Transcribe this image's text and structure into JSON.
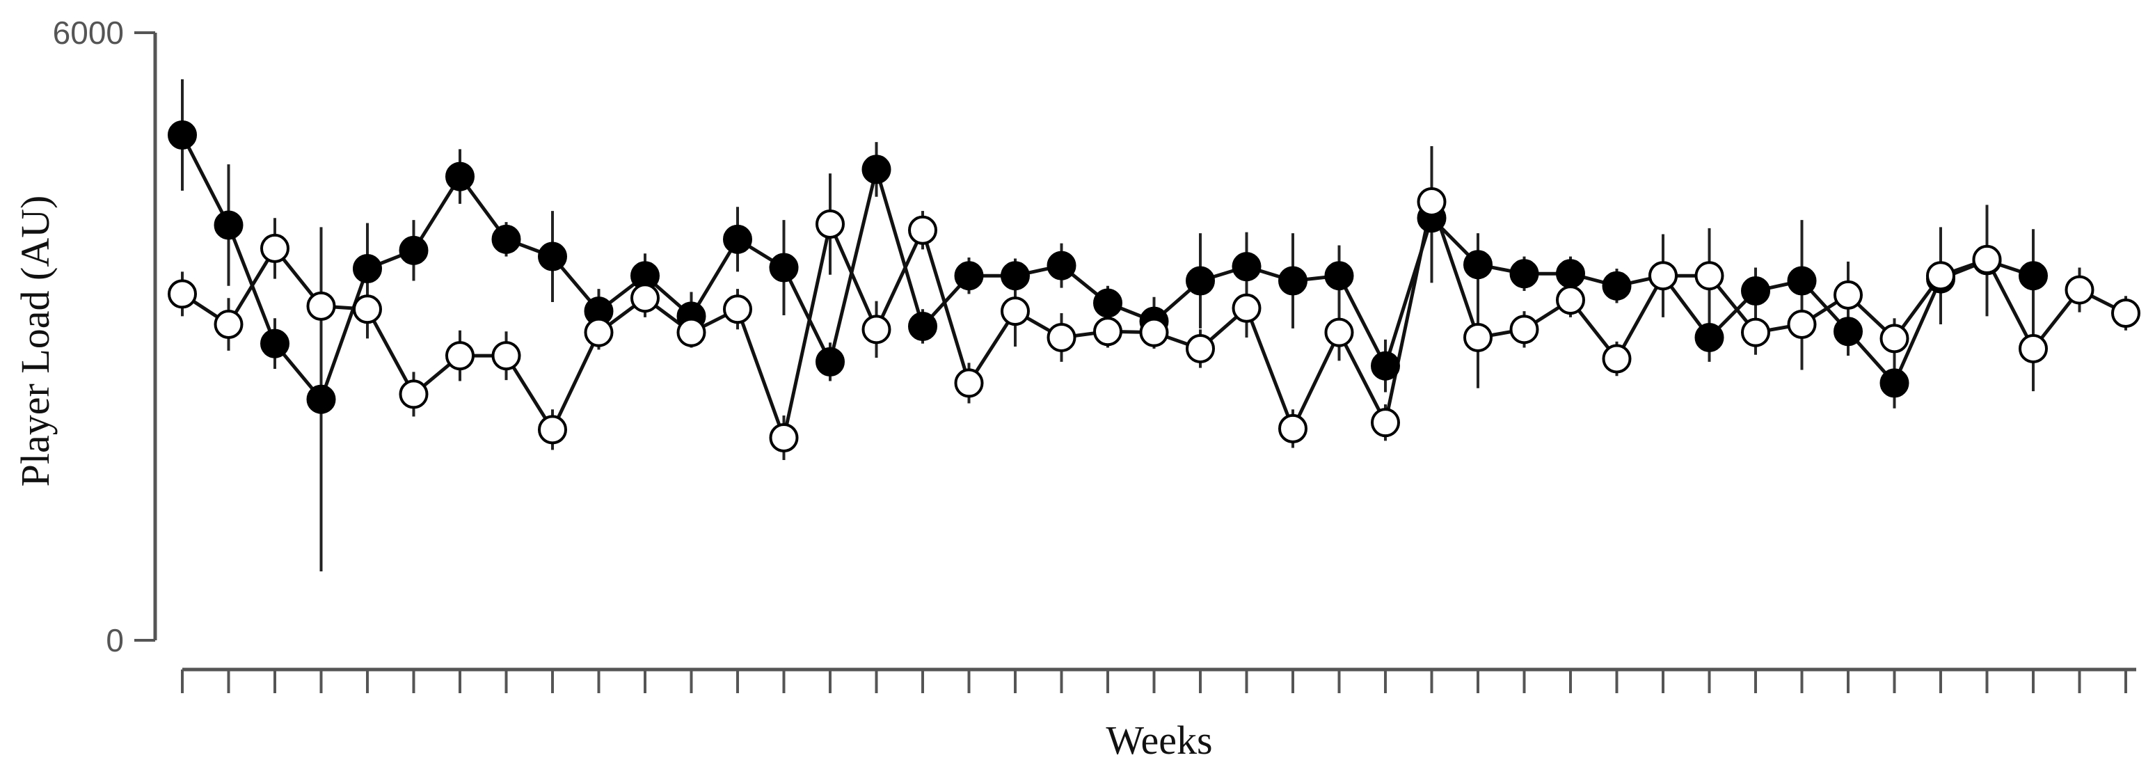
{
  "chart_data": {
    "type": "line",
    "xlabel": "Weeks",
    "ylabel": "Player Load (AU)",
    "ylim": [
      0,
      6000
    ],
    "yticks": [
      "0",
      "6000"
    ],
    "x_tick_count": 44,
    "grid": false,
    "series": [
      {
        "marker": "filled",
        "color": "#000000",
        "x": [
          1,
          2,
          3,
          4,
          5,
          6,
          7,
          8,
          9,
          10,
          11,
          12,
          13,
          14,
          15,
          16,
          17,
          18,
          19,
          20,
          21,
          22,
          23,
          24,
          25,
          26,
          27,
          28,
          29,
          30,
          31,
          32,
          33,
          34,
          35,
          36,
          37,
          38,
          39,
          40,
          41,
          42
        ],
        "values": [
          4990,
          4100,
          2930,
          2380,
          3670,
          3850,
          4580,
          3960,
          3790,
          3250,
          3600,
          3200,
          3960,
          3680,
          2750,
          4650,
          3100,
          3600,
          3600,
          3700,
          3330,
          3150,
          3550,
          3690,
          3550,
          3600,
          2710,
          4170,
          3710,
          3620,
          3620,
          3500,
          3600,
          2990,
          3450,
          3550,
          3050,
          2540,
          3570,
          3750,
          3600,
          null
        ],
        "errors": [
          550,
          600,
          250,
          1700,
          450,
          300,
          270,
          170,
          450,
          220,
          220,
          240,
          320,
          470,
          190,
          270,
          170,
          180,
          170,
          220,
          170,
          240,
          470,
          340,
          470,
          300,
          260,
          640,
          310,
          170,
          170,
          170,
          310,
          240,
          230,
          600,
          240,
          250,
          350,
          550,
          460,
          null
        ]
      },
      {
        "marker": "open",
        "color": "#ffffff",
        "x": [
          1,
          2,
          3,
          4,
          5,
          6,
          7,
          8,
          9,
          10,
          11,
          12,
          13,
          14,
          15,
          16,
          17,
          18,
          19,
          20,
          21,
          22,
          23,
          24,
          25,
          26,
          27,
          28,
          29,
          30,
          31,
          32,
          33,
          34,
          35,
          36,
          37,
          38,
          39,
          40,
          41,
          42,
          43,
          44
        ],
        "values": [
          3420,
          3120,
          3870,
          3300,
          3270,
          2430,
          2810,
          2810,
          2080,
          3040,
          3380,
          3040,
          3270,
          2000,
          4110,
          3070,
          4050,
          2540,
          3250,
          2990,
          3050,
          3040,
          2880,
          3280,
          2090,
          3040,
          2150,
          4330,
          2990,
          3070,
          3360,
          2780,
          3600,
          3600,
          3040,
          3120,
          3410,
          2980,
          3600,
          3760,
          2880,
          3460,
          3230,
          null
        ],
        "errors": [
          220,
          260,
          300,
          520,
          290,
          220,
          250,
          240,
          200,
          170,
          190,
          150,
          200,
          220,
          500,
          280,
          190,
          200,
          350,
          240,
          160,
          160,
          190,
          290,
          190,
          280,
          180,
          550,
          500,
          180,
          170,
          170,
          410,
          470,
          220,
          450,
          330,
          200,
          480,
          470,
          420,
          220,
          170,
          null
        ]
      }
    ]
  }
}
